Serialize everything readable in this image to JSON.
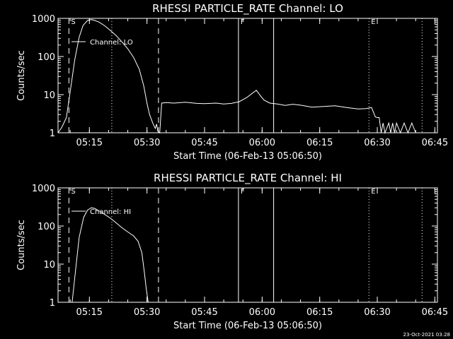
{
  "footer_timestamp": "23-Oct-2021 03:28",
  "chart_data": [
    {
      "type": "line",
      "title": "RHESSI PARTICLE_RATE Channel: LO",
      "xlabel": "Start Time (06-Feb-13 05:06:50)",
      "ylabel": "Counts/sec",
      "xlim": [
        "05:06:50",
        "06:45:40"
      ],
      "ylim": [
        1,
        1000
      ],
      "yscale": "log",
      "x_tick_labels": [
        "05:15",
        "05:30",
        "05:45",
        "06:00",
        "06:15",
        "06:30",
        "06:45"
      ],
      "y_tick_labels": [
        "1",
        "10",
        "100",
        "1000"
      ],
      "legend": "Channel: LO",
      "legend_position": "top-left",
      "markers": [
        {
          "label": "S",
          "time": "05:09:40",
          "style": "dashed"
        },
        {
          "label": "",
          "time": "05:33:00",
          "style": "dashed"
        },
        {
          "label": "",
          "time": "05:20:50",
          "style": "dotted"
        },
        {
          "label": "F",
          "time": "05:53:50",
          "style": "solid"
        },
        {
          "label": "",
          "time": "06:03:00",
          "style": "solid"
        },
        {
          "label": "E",
          "time": "06:27:50",
          "style": "dotted"
        },
        {
          "label": "",
          "time": "06:41:40",
          "style": "dotted"
        }
      ],
      "series": [
        {
          "name": "Channel: LO",
          "x": [
            "05:06:50",
            "05:07:50",
            "05:09:00",
            "05:10:00",
            "05:11:10",
            "05:12:20",
            "05:13:20",
            "05:14:30",
            "05:15:30",
            "05:16:10",
            "05:17:30",
            "05:19:00",
            "05:20:30",
            "05:22:00",
            "05:23:30",
            "05:25:00",
            "05:26:30",
            "05:28:00",
            "05:29:10",
            "05:30:00",
            "05:30:40",
            "05:31:30",
            "05:32:10",
            "05:32:30",
            "05:32:50",
            "05:33:20",
            "05:33:50",
            "05:35:00",
            "05:37:00",
            "05:40:00",
            "05:43:00",
            "05:45:00",
            "05:48:00",
            "05:50:00",
            "05:52:00",
            "05:54:00",
            "05:56:00",
            "05:57:30",
            "05:58:30",
            "05:59:30",
            "06:00:30",
            "06:02:00",
            "06:04:00",
            "06:06:00",
            "06:08:00",
            "06:10:00",
            "06:13:00",
            "06:16:00",
            "06:19:00",
            "06:22:00",
            "06:25:00",
            "06:27:00",
            "06:28:30",
            "06:29:30",
            "06:30:00",
            "06:30:30",
            "06:31:00",
            "06:31:30",
            "06:32:00",
            "06:33:00",
            "06:33:30",
            "06:34:00",
            "06:34:30",
            "06:35:00",
            "06:36:00",
            "06:37:00",
            "06:38:00",
            "06:39:00",
            "06:40:00"
          ],
          "values": [
            1,
            1.4,
            2.5,
            12,
            80,
            320,
            650,
            880,
            930,
            900,
            800,
            640,
            480,
            350,
            240,
            160,
            95,
            46,
            17,
            6,
            3,
            1.8,
            1.3,
            1.7,
            1.1,
            1,
            6,
            6.2,
            6,
            6.3,
            5.9,
            5.8,
            6,
            5.7,
            5.9,
            6.5,
            8.4,
            11,
            13,
            9.5,
            7.2,
            6,
            5.7,
            5.2,
            5.6,
            5.3,
            4.7,
            4.9,
            5.1,
            4.6,
            4.2,
            4.3,
            4.6,
            2.6,
            2.5,
            2.5,
            1,
            1.8,
            1,
            1.8,
            1,
            1.8,
            1,
            1.8,
            1,
            1.8,
            1,
            1.8,
            1
          ]
        }
      ]
    },
    {
      "type": "line",
      "title": "RHESSI PARTICLE_RATE Channel: HI",
      "xlabel": "Start Time (06-Feb-13 05:06:50)",
      "ylabel": "Counts/sec",
      "xlim": [
        "05:06:50",
        "06:45:40"
      ],
      "ylim": [
        1,
        1000
      ],
      "yscale": "log",
      "x_tick_labels": [
        "05:15",
        "05:30",
        "05:45",
        "06:00",
        "06:15",
        "06:30",
        "06:45"
      ],
      "y_tick_labels": [
        "1",
        "10",
        "100",
        "1000"
      ],
      "legend": "Channel: HI",
      "legend_position": "top-left",
      "markers": [
        {
          "label": "S",
          "time": "05:09:40",
          "style": "dashed"
        },
        {
          "label": "",
          "time": "05:33:00",
          "style": "dashed"
        },
        {
          "label": "",
          "time": "05:20:50",
          "style": "dotted"
        },
        {
          "label": "F",
          "time": "05:53:50",
          "style": "solid"
        },
        {
          "label": "",
          "time": "06:03:00",
          "style": "solid"
        },
        {
          "label": "E",
          "time": "06:27:50",
          "style": "dotted"
        },
        {
          "label": "",
          "time": "06:41:40",
          "style": "dotted"
        }
      ],
      "series": [
        {
          "name": "Channel: HI",
          "x": [
            "05:10:30",
            "05:11:20",
            "05:12:20",
            "05:13:30",
            "05:14:30",
            "05:15:30",
            "05:16:20",
            "05:17:30",
            "05:19:00",
            "05:20:30",
            "05:22:00",
            "05:23:30",
            "05:25:00",
            "05:26:30",
            "05:27:40",
            "05:28:40",
            "05:29:20",
            "05:29:50",
            "05:30:20"
          ],
          "values": [
            1,
            6,
            50,
            170,
            260,
            300,
            290,
            250,
            200,
            160,
            120,
            90,
            70,
            55,
            40,
            20,
            6,
            2.2,
            1
          ]
        }
      ]
    }
  ]
}
